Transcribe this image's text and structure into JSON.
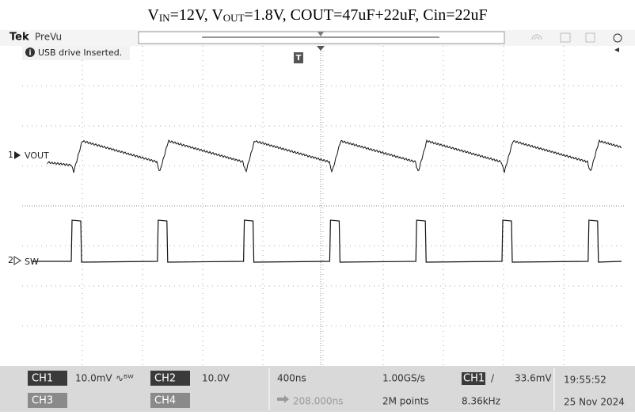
{
  "title": {
    "parts": [
      "V",
      "IN",
      "=12V, V",
      "OUT",
      "=1.8V, COUT=47uF+22uF, Cin=22uF"
    ]
  },
  "header": {
    "brand": "Tek",
    "mode": "PreVu"
  },
  "notice": "USB drive Inserted.",
  "trigger_marker": "T",
  "traces": [
    {
      "number": "1",
      "label": "VOUT"
    },
    {
      "number": "2",
      "label": "SW"
    }
  ],
  "status": {
    "ch1": {
      "name": "CH1",
      "scale": "10.0mV"
    },
    "ch2": {
      "name": "CH2",
      "scale": "10.0V"
    },
    "ch3": {
      "name": "CH3",
      "scale": "--"
    },
    "ch4": {
      "name": "CH4",
      "scale": "--"
    },
    "horizontal": {
      "scale": "400ns",
      "delay": "208.000ns"
    },
    "acquisition": {
      "rate": "1.00GS/s",
      "length": "2M points"
    },
    "trigger": {
      "source": "CH1",
      "slope": "/",
      "level": "33.6mV",
      "frequency": "8.36kHz"
    },
    "clock": {
      "time": "19:55:52",
      "date": "25 Nov 2024"
    }
  }
}
